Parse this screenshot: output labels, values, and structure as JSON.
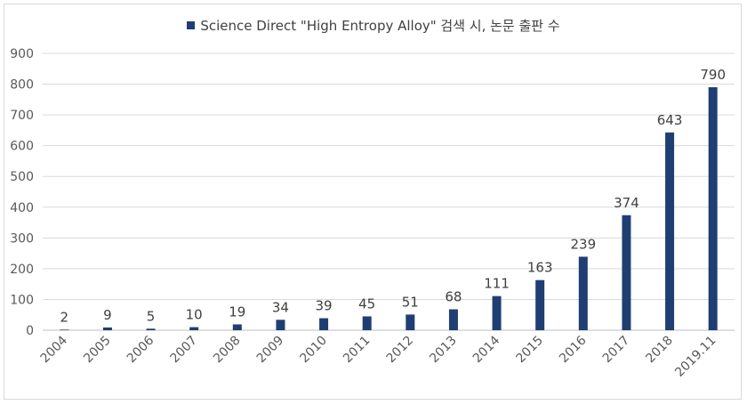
{
  "chart_data": {
    "type": "bar",
    "categories": [
      "2004",
      "2005",
      "2006",
      "2007",
      "2008",
      "2009",
      "2010",
      "2011",
      "2012",
      "2013",
      "2014",
      "2015",
      "2016",
      "2017",
      "2018",
      "2019.11"
    ],
    "series": [
      {
        "name": "Science Direct \"High Entropy Alloy\" 검색 시, 논문 출판 수",
        "values": [
          2,
          9,
          5,
          10,
          19,
          34,
          39,
          45,
          51,
          68,
          111,
          163,
          239,
          374,
          643,
          790
        ],
        "color": "#1f3f73"
      }
    ],
    "y_ticks": [
      "0",
      "100",
      "200",
      "300",
      "400",
      "500",
      "600",
      "700",
      "800",
      "900"
    ],
    "ylim": [
      0,
      900
    ],
    "grid": true,
    "legend_position": "top-center"
  }
}
